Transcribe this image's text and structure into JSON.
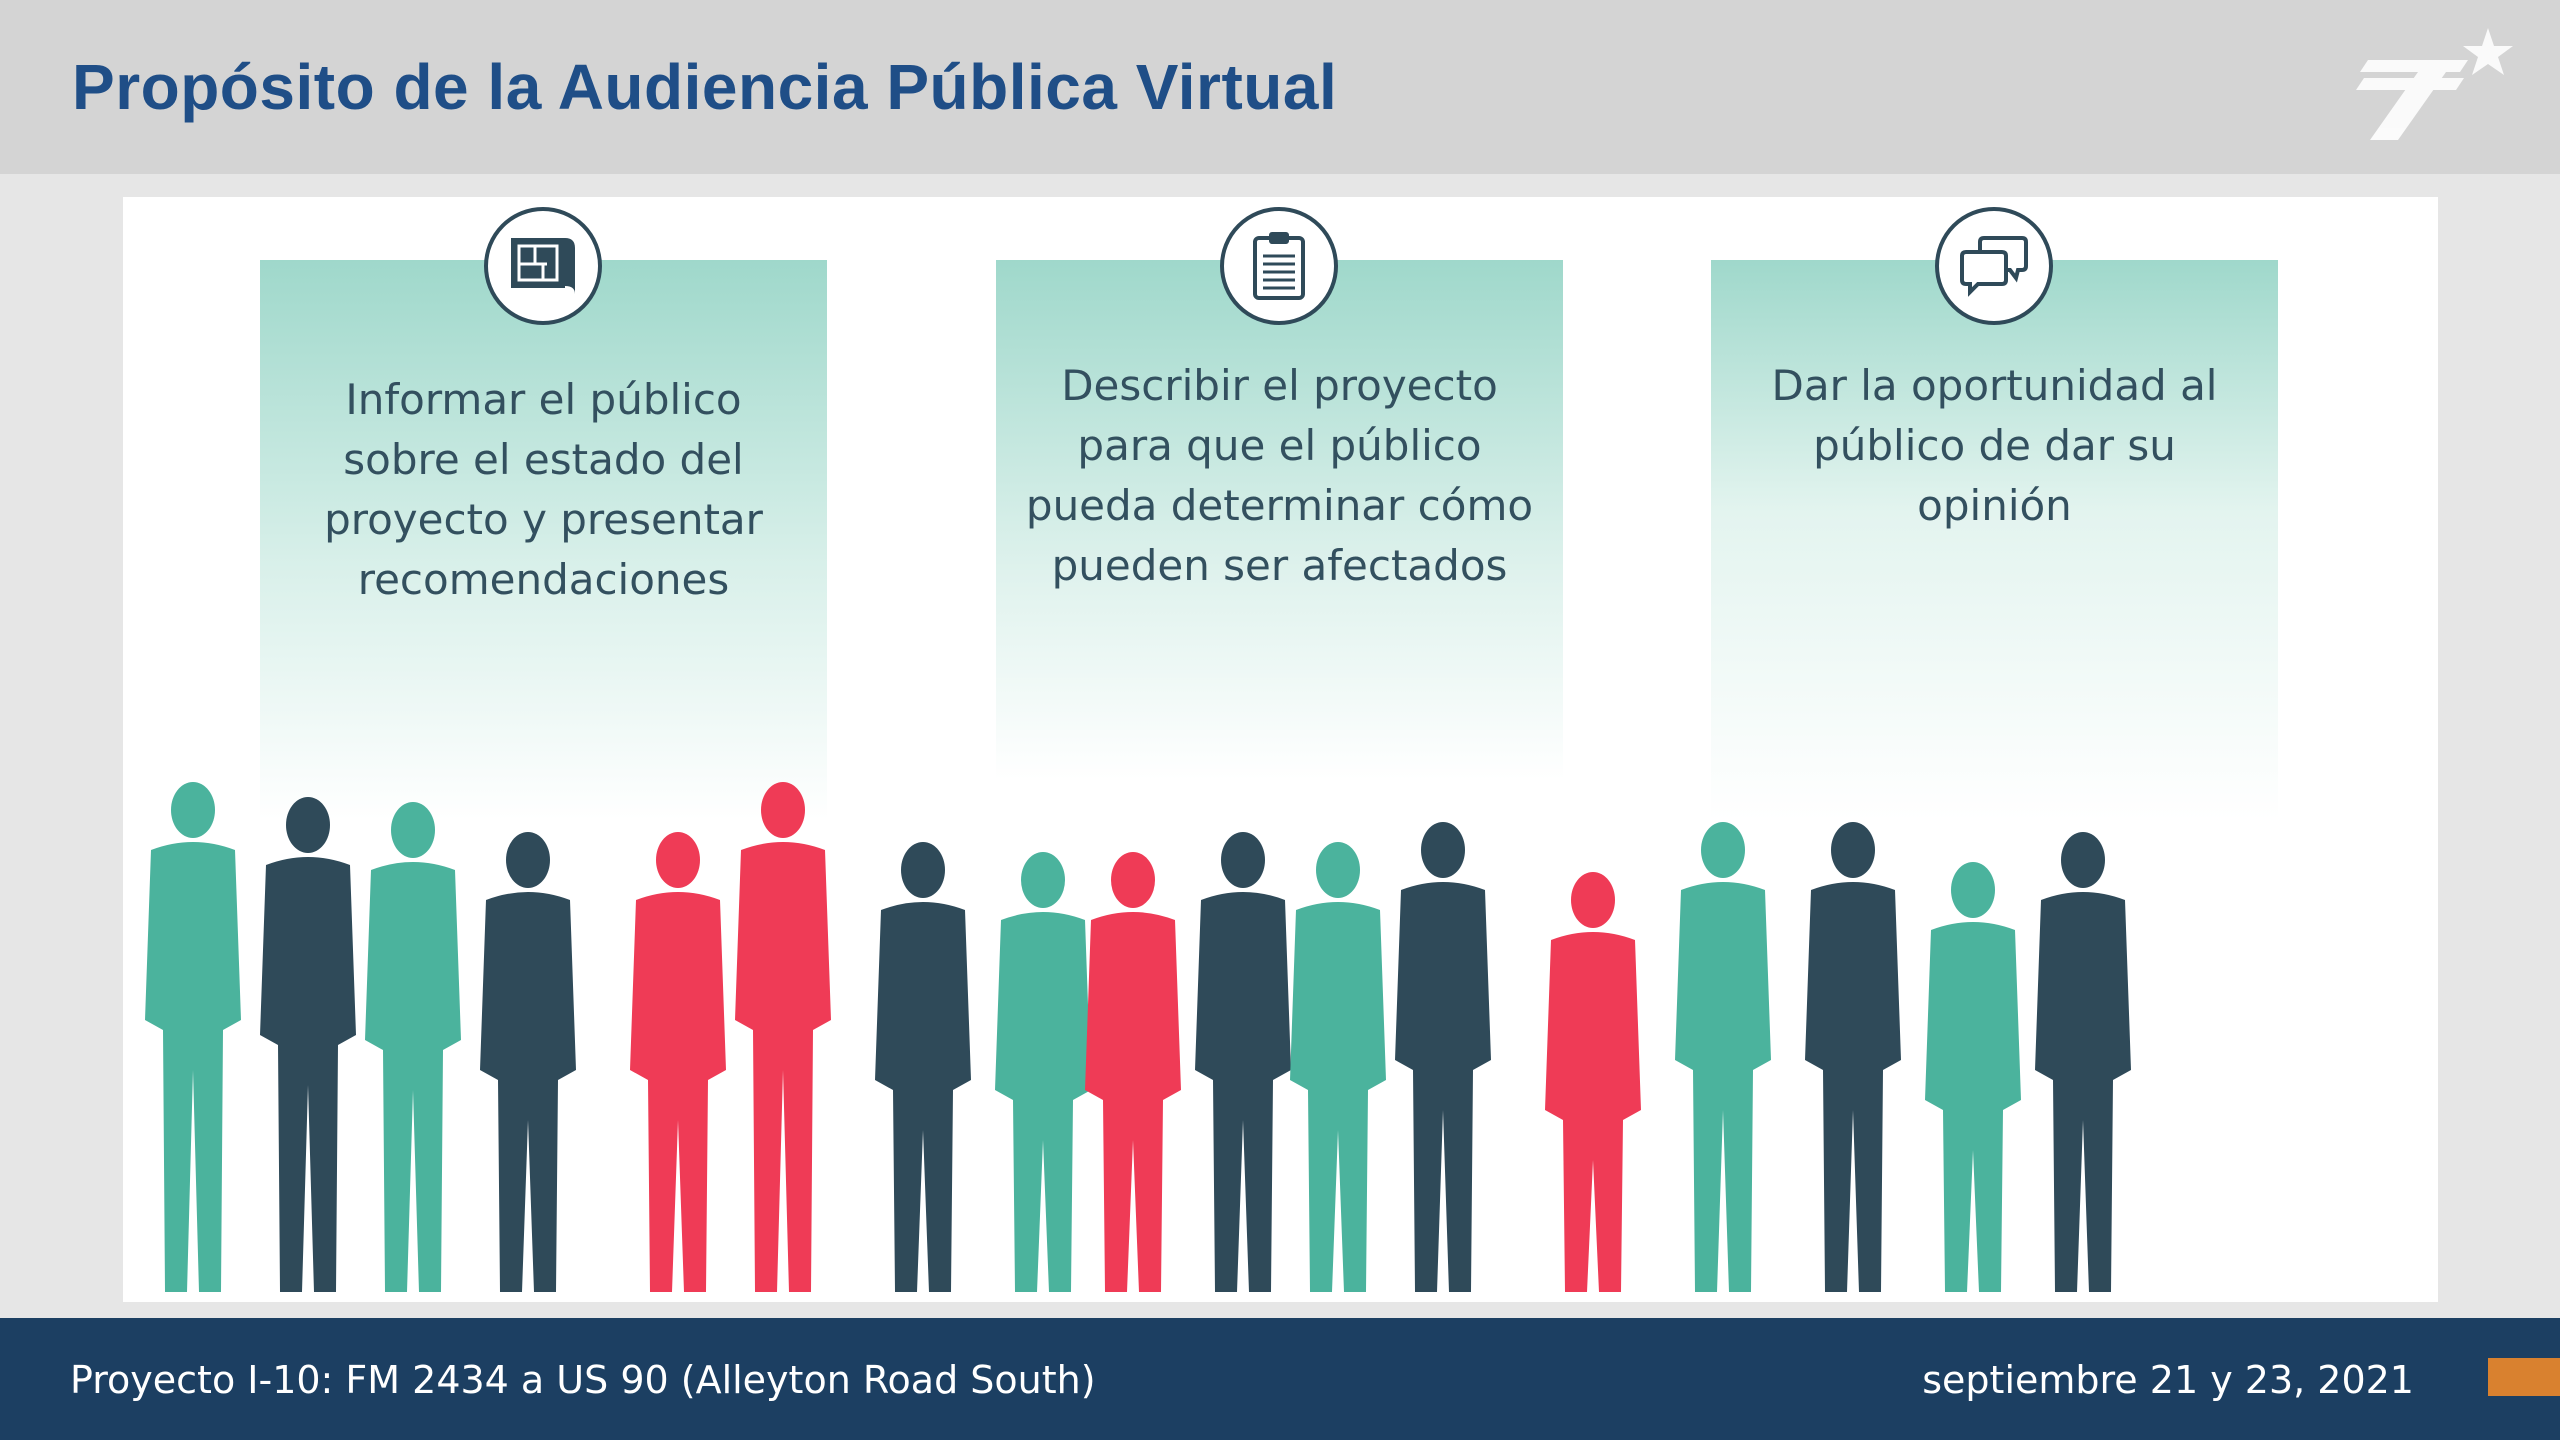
{
  "header": {
    "title": "Propósito de la Audiencia Pública Virtual"
  },
  "cards": [
    {
      "icon": "blueprint-icon",
      "lines": [
        "Informar el público",
        "sobre el estado del",
        "proyecto y presentar",
        "recomendaciones"
      ]
    },
    {
      "icon": "clipboard-icon",
      "lines": [
        "Describir el proyecto",
        "para que el público",
        "pueda determinar cómo",
        "pueden ser afectados"
      ]
    },
    {
      "icon": "speech-bubbles-icon",
      "lines": [
        "Dar la oportunidad al",
        "público de dar su",
        "opinión"
      ]
    }
  ],
  "footer": {
    "project": "Proyecto I-10: FM 2434 a US 90 (Alleyton Road South)",
    "date": "septiembre 21 y 23, 2021"
  },
  "colors": {
    "title_blue": "#1f4e87",
    "header_gray": "#d4d4d4",
    "teal": "#4bb39d",
    "dark_slate": "#2f4a59",
    "coral": "#ef3b56",
    "footer_navy": "#1c3f62",
    "accent_orange": "#d9812f"
  }
}
